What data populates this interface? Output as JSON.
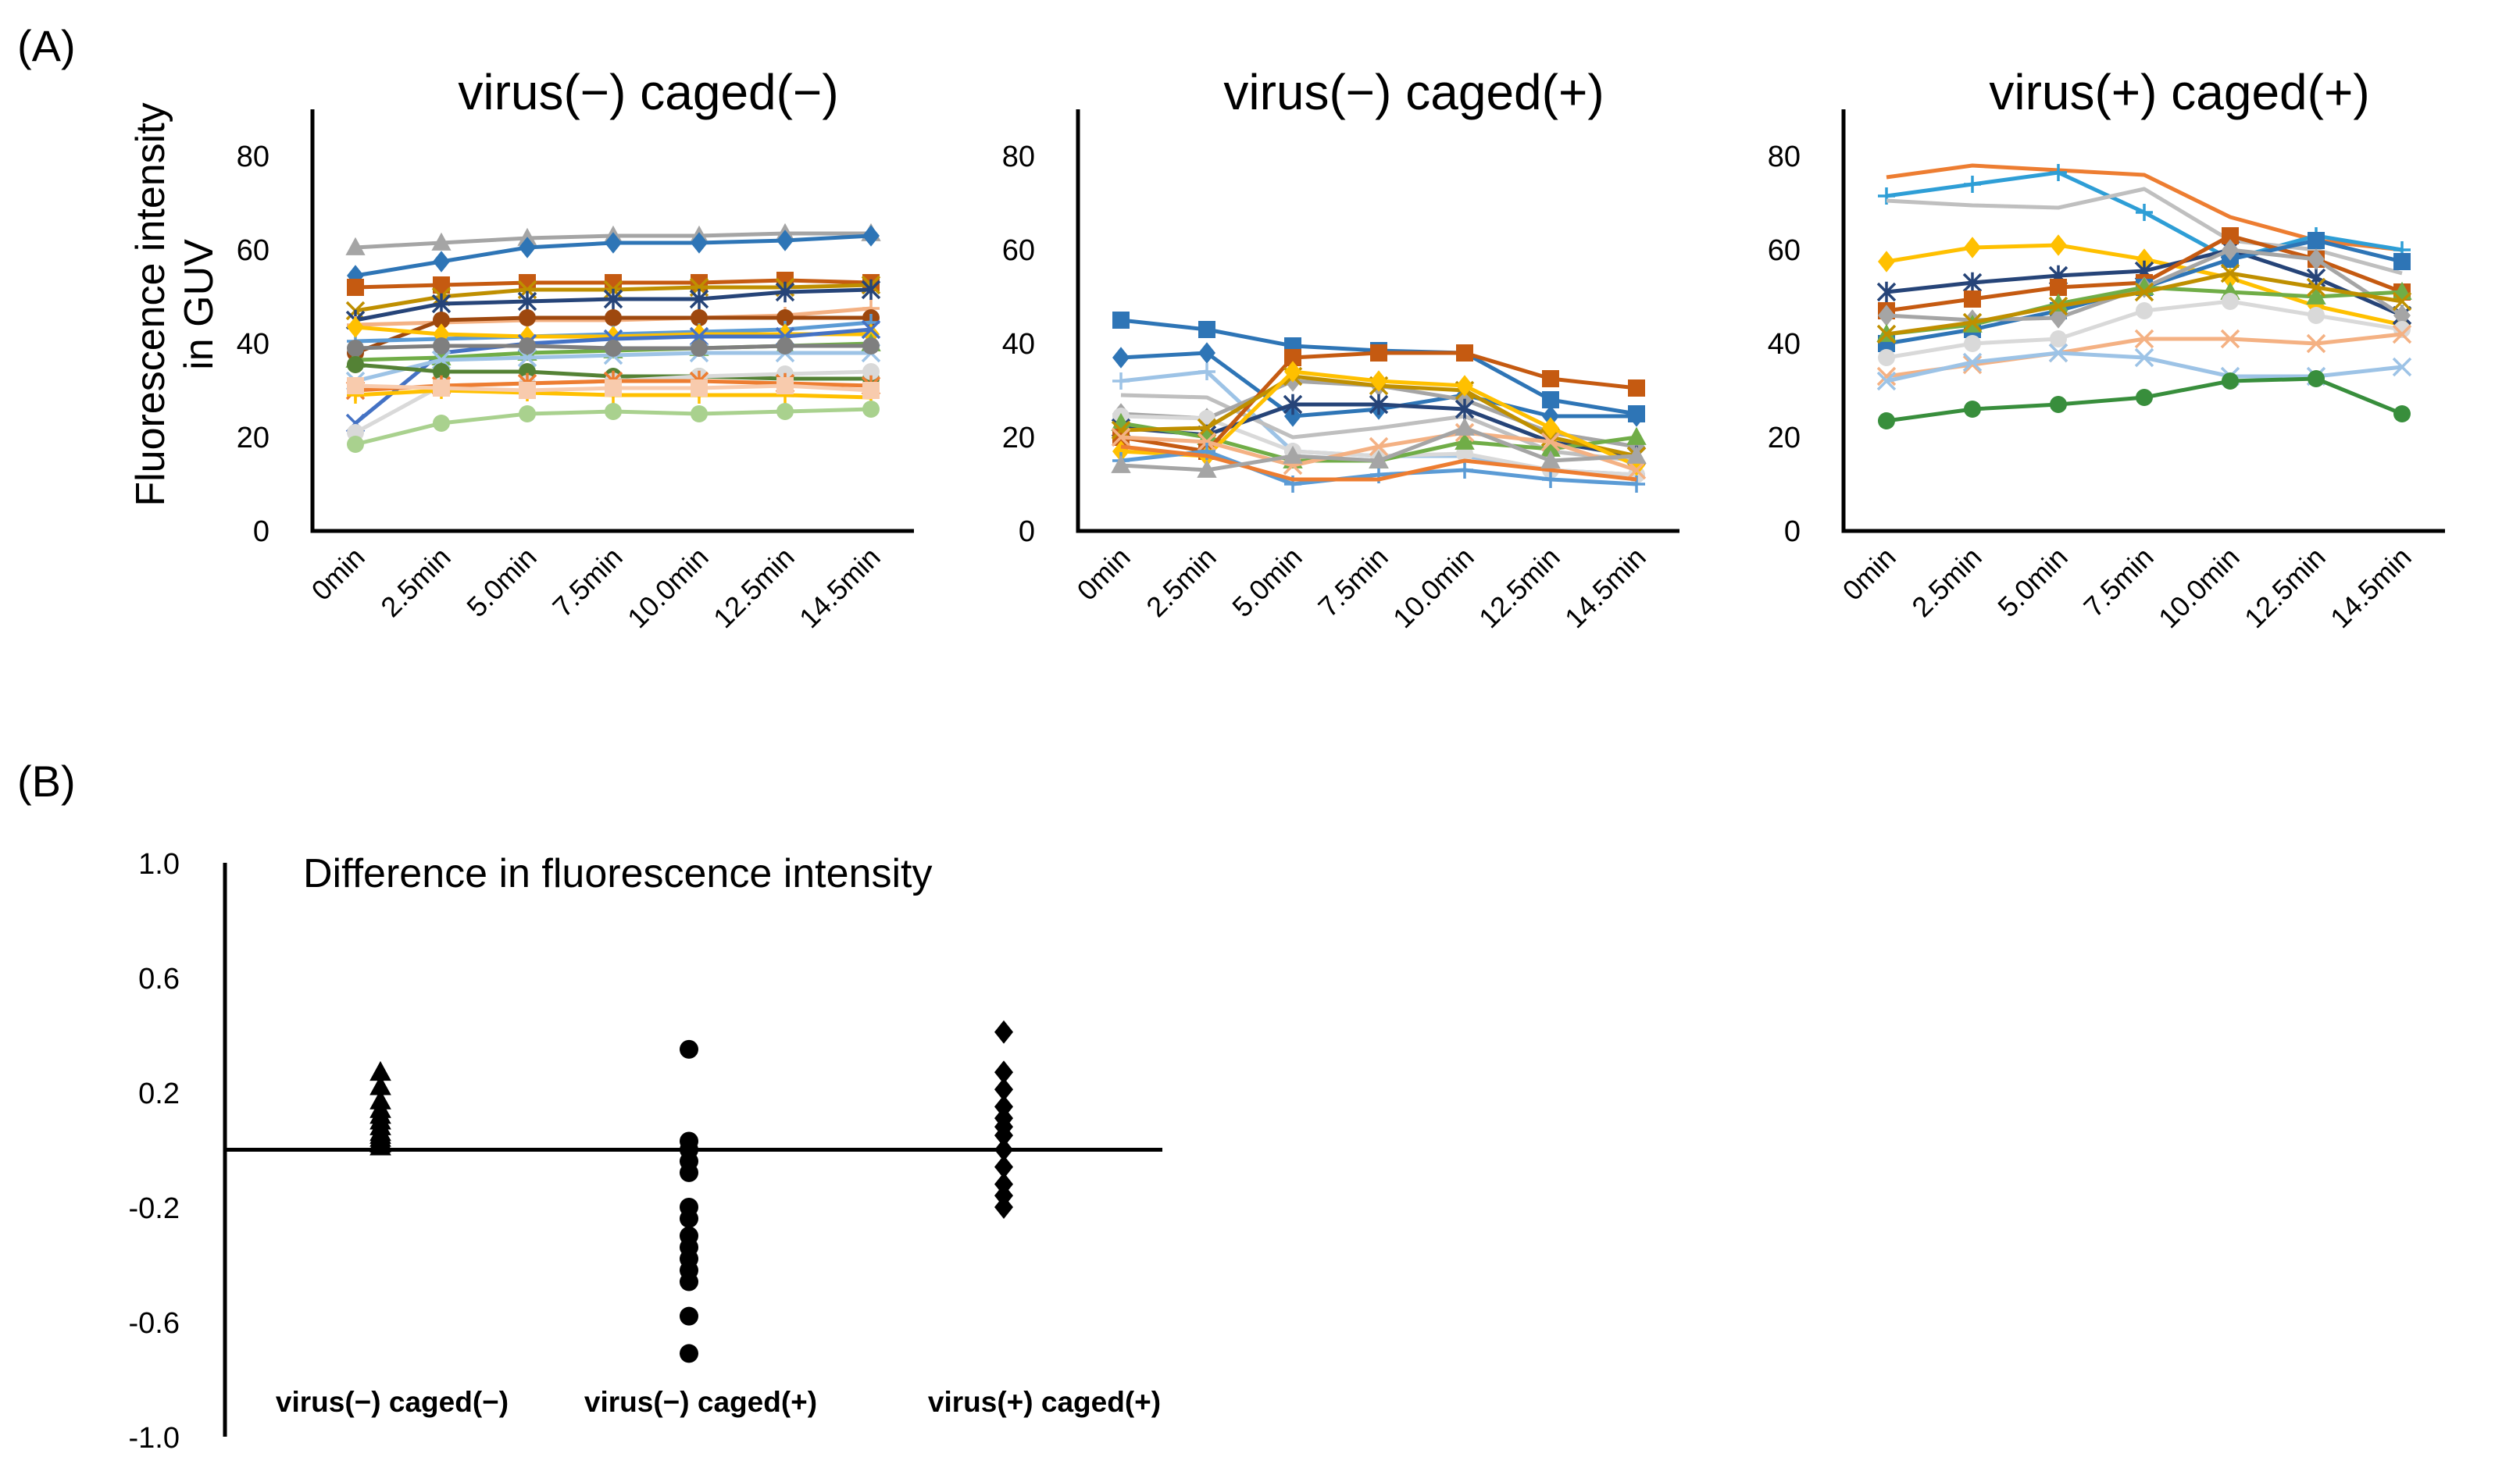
{
  "panel_labels": {
    "a": "(A)",
    "b": "(B)"
  },
  "ylabel_line1": "Fluorescence intensity",
  "ylabel_line2": "in GUV",
  "chart_data": [
    {
      "id": "a1",
      "type": "line",
      "title": "virus(−) caged(−)",
      "categories": [
        "0min",
        "2.5min",
        "5.0min",
        "7.5min",
        "10.0min",
        "12.5min",
        "14.5min"
      ],
      "y_ticks": [
        "0",
        "20",
        "40",
        "60",
        "80"
      ],
      "ylim": [
        0,
        90
      ],
      "series": [
        {
          "color": "#A5A5A5",
          "marker": "triangle",
          "values": [
            60.5,
            61.5,
            62.5,
            63,
            63,
            63.5,
            63.5
          ]
        },
        {
          "color": "#2E75B6",
          "marker": "diamond",
          "values": [
            54.5,
            57.5,
            60.5,
            61.5,
            61.5,
            62,
            63
          ]
        },
        {
          "color": "#C55A11",
          "marker": "square",
          "values": [
            52,
            52.5,
            53,
            53,
            53,
            53.5,
            53
          ]
        },
        {
          "color": "#BF8F00",
          "marker": "x",
          "values": [
            47,
            50,
            51.5,
            51.5,
            52,
            52,
            52.5
          ]
        },
        {
          "color": "#264478",
          "marker": "star",
          "values": [
            45,
            48.5,
            49,
            49.5,
            49.5,
            51,
            51.5
          ]
        },
        {
          "color": "#F4B183",
          "marker": "plus",
          "values": [
            44,
            44.5,
            45,
            45,
            45.5,
            46,
            47.5
          ]
        },
        {
          "color": "#9E480E",
          "marker": "circle",
          "values": [
            38,
            45,
            45.5,
            45.5,
            45.5,
            45.5,
            45.5
          ]
        },
        {
          "color": "#5B9BD5",
          "marker": "plus",
          "values": [
            40.5,
            41,
            41.5,
            42,
            42.5,
            43,
            44.5
          ]
        },
        {
          "color": "#FFC000",
          "marker": "diamond",
          "values": [
            43.5,
            42,
            41.5,
            41.5,
            42,
            42,
            42
          ]
        },
        {
          "color": "#4472C4",
          "marker": "x",
          "values": [
            23,
            38,
            40,
            41,
            41.5,
            41.5,
            43
          ]
        },
        {
          "color": "#70AD47",
          "marker": "triangle",
          "values": [
            36.5,
            37,
            38,
            38.5,
            39,
            39.5,
            40
          ]
        },
        {
          "color": "#9DC3E6",
          "marker": "x",
          "values": [
            32,
            36.5,
            37,
            37.5,
            38,
            38,
            38
          ]
        },
        {
          "color": "#7F7F7F",
          "marker": "circle",
          "values": [
            39,
            39.5,
            39.5,
            39,
            39,
            39.5,
            39.5
          ]
        },
        {
          "color": "#548235",
          "marker": "circle",
          "values": [
            35.5,
            34,
            34,
            33,
            33,
            32.5,
            32.5
          ]
        },
        {
          "color": "#D9D9D9",
          "marker": "circle",
          "values": [
            21,
            31,
            31.5,
            32,
            33,
            33.5,
            34
          ]
        },
        {
          "color": "#ED7D31",
          "marker": "star",
          "values": [
            30,
            31,
            31.5,
            32,
            32,
            31.5,
            31
          ]
        },
        {
          "color": "#FFC000",
          "marker": "plus",
          "values": [
            29,
            30,
            29.5,
            29,
            29,
            29,
            28.5
          ]
        },
        {
          "color": "#F8CBAD",
          "marker": "square",
          "values": [
            31,
            30.5,
            30,
            30.5,
            30.5,
            31,
            30
          ]
        },
        {
          "color": "#A9D18E",
          "marker": "circle",
          "values": [
            18.5,
            23,
            25,
            25.5,
            25,
            25.5,
            26
          ]
        }
      ]
    },
    {
      "id": "a2",
      "type": "line",
      "title": "virus(−) caged(+)",
      "categories": [
        "0min",
        "2.5min",
        "5.0min",
        "7.5min",
        "10.0min",
        "12.5min",
        "14.5min"
      ],
      "y_ticks": [
        "0",
        "20",
        "40",
        "60",
        "80"
      ],
      "ylim": [
        0,
        90
      ],
      "series": [
        {
          "color": "#2E75B6",
          "marker": "square",
          "values": [
            45,
            43,
            39.5,
            38.5,
            38,
            28,
            25
          ]
        },
        {
          "color": "#2E75B6",
          "marker": "diamond",
          "values": [
            37,
            38,
            24.5,
            26,
            29,
            24.5,
            24.5
          ]
        },
        {
          "color": "#9DC3E6",
          "marker": "plus",
          "values": [
            32,
            34,
            17,
            16,
            16,
            13,
            12
          ]
        },
        {
          "color": "#BFBFBF",
          "marker": "none",
          "values": [
            29,
            28.5,
            20,
            22,
            24.5,
            17,
            15
          ]
        },
        {
          "color": "#A5A5A5",
          "marker": "diamond",
          "values": [
            25,
            24,
            32,
            31,
            28,
            21,
            18
          ]
        },
        {
          "color": "#D9D9D9",
          "marker": "circle",
          "values": [
            24.5,
            24,
            17,
            16,
            16.5,
            13,
            12
          ]
        },
        {
          "color": "#264478",
          "marker": "star",
          "values": [
            22,
            20.5,
            27,
            27,
            26,
            19,
            16
          ]
        },
        {
          "color": "#70AD47",
          "marker": "triangle",
          "values": [
            23,
            20,
            15,
            15,
            19,
            17.5,
            20
          ]
        },
        {
          "color": "#C55A11",
          "marker": "square",
          "values": [
            20,
            17,
            37,
            38,
            38,
            32.5,
            30.5
          ]
        },
        {
          "color": "#BF8F00",
          "marker": "x",
          "values": [
            21.5,
            22,
            33,
            31,
            30,
            20,
            16
          ]
        },
        {
          "color": "#FFC000",
          "marker": "diamond",
          "values": [
            17,
            16,
            34,
            32,
            31,
            22,
            14
          ]
        },
        {
          "color": "#F4B183",
          "marker": "x",
          "values": [
            20,
            19,
            14,
            18,
            21,
            19,
            13
          ]
        },
        {
          "color": "#5B9BD5",
          "marker": "plus",
          "values": [
            15,
            17,
            10,
            12,
            13,
            11,
            10
          ]
        },
        {
          "color": "#ED7D31",
          "marker": "none",
          "values": [
            18,
            16,
            11,
            11,
            15,
            13,
            11
          ]
        },
        {
          "color": "#A5A5A5",
          "marker": "triangle",
          "values": [
            14,
            13,
            16,
            15,
            22,
            15,
            16
          ]
        }
      ]
    },
    {
      "id": "a3",
      "type": "line",
      "title": "virus(+) caged(+)",
      "categories": [
        "0min",
        "2.5min",
        "5.0min",
        "7.5min",
        "10.0min",
        "12.5min",
        "14.5min"
      ],
      "y_ticks": [
        "0",
        "20",
        "40",
        "60",
        "80"
      ],
      "ylim": [
        0,
        90
      ],
      "series": [
        {
          "color": "#ED7D31",
          "marker": "none",
          "values": [
            75.5,
            78,
            77,
            76,
            67,
            62,
            60
          ]
        },
        {
          "color": "#2E9ED6",
          "marker": "plus",
          "values": [
            71.5,
            74,
            76.5,
            68,
            58,
            63,
            60
          ]
        },
        {
          "color": "#BFBFBF",
          "marker": "none",
          "values": [
            70.5,
            69.5,
            69,
            73,
            62,
            60,
            55
          ]
        },
        {
          "color": "#FFC000",
          "marker": "diamond",
          "values": [
            57.5,
            60.5,
            61,
            58,
            54,
            48,
            44
          ]
        },
        {
          "color": "#264478",
          "marker": "star",
          "values": [
            51,
            53,
            54.5,
            55.5,
            60,
            54,
            46
          ]
        },
        {
          "color": "#C55A11",
          "marker": "square",
          "values": [
            47,
            49.5,
            52,
            53,
            63,
            58,
            51
          ]
        },
        {
          "color": "#2E75B6",
          "marker": "square",
          "values": [
            40,
            43,
            47,
            52,
            58,
            62,
            57.5
          ]
        },
        {
          "color": "#A5A5A5",
          "marker": "diamond",
          "values": [
            46,
            45,
            45.5,
            52,
            60,
            58,
            46
          ]
        },
        {
          "color": "#70AD47",
          "marker": "triangle",
          "values": [
            42,
            44,
            48.5,
            52,
            51,
            50,
            51
          ]
        },
        {
          "color": "#BF8F00",
          "marker": "x",
          "values": [
            42,
            44.5,
            48,
            51,
            55,
            52,
            49
          ]
        },
        {
          "color": "#D9D9D9",
          "marker": "circle",
          "values": [
            37,
            40,
            41,
            47,
            49,
            46,
            43
          ]
        },
        {
          "color": "#F4B183",
          "marker": "x",
          "values": [
            33,
            35.5,
            38,
            41,
            41,
            40,
            42
          ]
        },
        {
          "color": "#9DC3E6",
          "marker": "x",
          "values": [
            32,
            36,
            38,
            37,
            33,
            33,
            35
          ]
        },
        {
          "color": "#388E3C",
          "marker": "circle",
          "values": [
            23.5,
            26,
            27,
            28.5,
            32,
            32.5,
            25
          ]
        }
      ]
    },
    {
      "id": "b",
      "type": "scatter",
      "title": "Difference in fluorescence intensity",
      "y_ticks": [
        "1.0",
        "0.6",
        "0.2",
        "-0.2",
        "-0.6",
        "-1.0"
      ],
      "ylim": [
        -1.0,
        1.0
      ],
      "groups": [
        {
          "label": "virus(−) caged(−)",
          "marker": "triangle",
          "values": [
            0.27,
            0.22,
            0.17,
            0.14,
            0.12,
            0.1,
            0.08,
            0.06,
            0.05,
            0.04,
            0.03,
            0.02,
            0.01
          ]
        },
        {
          "label": "virus(−) caged(+)",
          "marker": "circle",
          "values": [
            0.35,
            0.03,
            0.0,
            -0.04,
            -0.08,
            -0.2,
            -0.24,
            -0.3,
            -0.34,
            -0.38,
            -0.42,
            -0.46,
            -0.58,
            -0.71
          ]
        },
        {
          "label": "virus(+) caged(+)",
          "marker": "diamond",
          "values": [
            0.41,
            0.27,
            0.21,
            0.15,
            0.11,
            0.08,
            0.05,
            0.0,
            -0.06,
            -0.12,
            -0.16,
            -0.2
          ]
        }
      ]
    }
  ]
}
